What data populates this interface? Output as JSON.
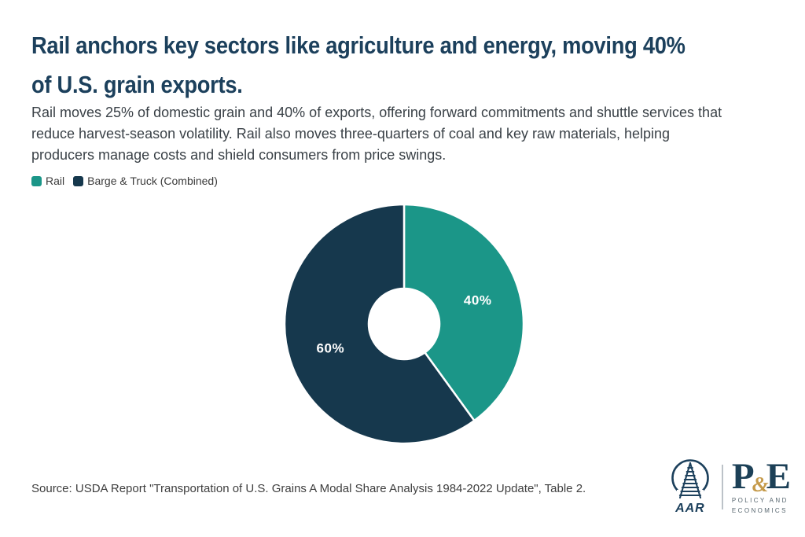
{
  "page": {
    "background": "#ffffff"
  },
  "header": {
    "title_lines": [
      "Rail anchors key sectors like agriculture and energy, moving 40%",
      "of U.S. grain exports."
    ],
    "subtitle_lines": [
      "Rail moves 25% of domestic grain and 40% of exports, offering forward commitments and shuttle services that",
      "reduce harvest-season volatility. Rail also moves three-quarters of coal and key raw materials, helping",
      "producers manage costs and shield consumers from price swings."
    ]
  },
  "legend": {
    "items": [
      {
        "label": "Rail",
        "color": "#1b9688"
      },
      {
        "label": "Barge & Truck (Combined)",
        "color": "#16384d"
      }
    ]
  },
  "chart_data": {
    "type": "pie",
    "donut": true,
    "categories": [
      "Rail",
      "Barge & Truck (Combined)"
    ],
    "values": [
      40,
      60
    ],
    "labels_display": [
      "40%",
      "60%"
    ],
    "colors": [
      "#1b9688",
      "#16384d"
    ],
    "label_color": "#ffffff",
    "start_angle_deg": 0,
    "direction": "clockwise",
    "outer_radius_px": 152,
    "inner_radius_px": 45,
    "slice_gap_color": "#ffffff",
    "legend_position": "top-left"
  },
  "footer": {
    "source": "Source: USDA Report \"Transportation of U.S. Grains A Modal Share Analysis 1984-2022 Update\", Table 2.",
    "aar_text": "AAR",
    "pe_p": "P",
    "pe_amp": "&",
    "pe_e": "E",
    "pe_line1": "POLICY AND",
    "pe_line2": "ECONOMICS"
  },
  "colors": {
    "title": "#1c405c",
    "body_text": "#3a4147",
    "teal": "#1b9688",
    "navy": "#16384d",
    "gold": "#c59a4a"
  }
}
